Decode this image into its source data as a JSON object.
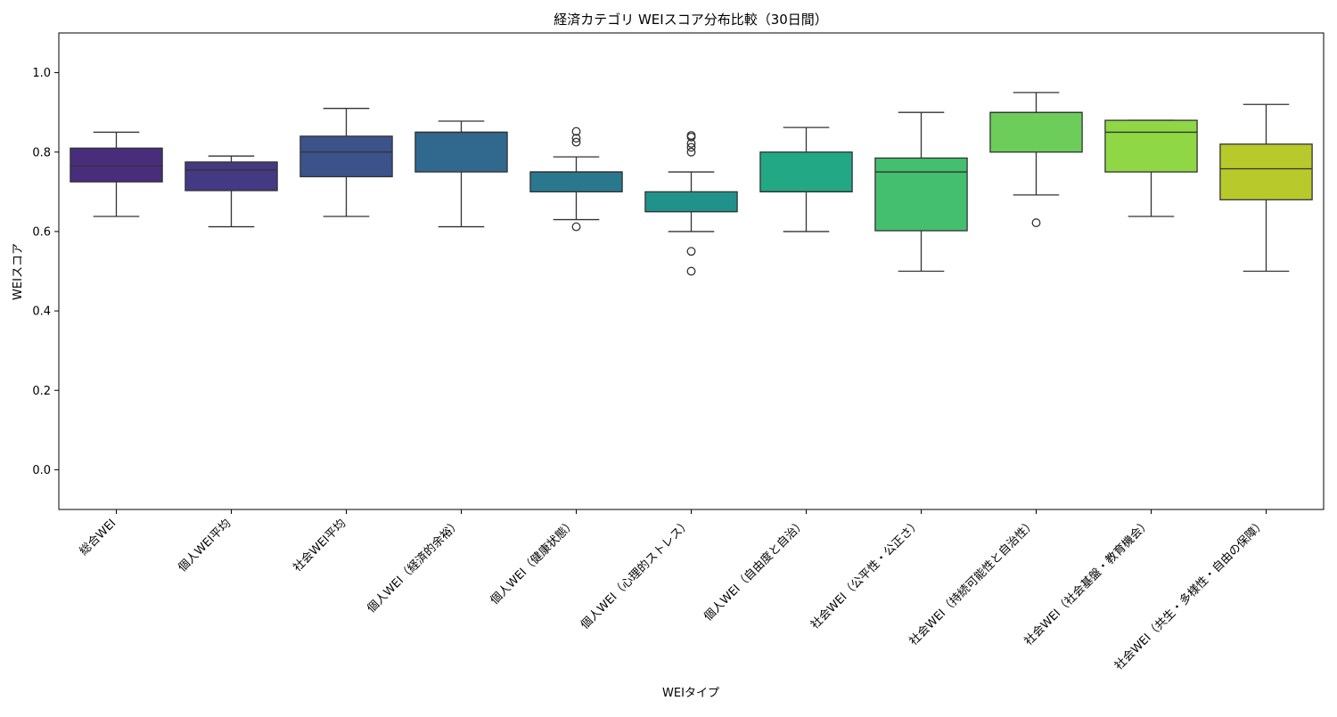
{
  "chart_data": {
    "type": "box",
    "title": "経済カテゴリ WEIスコア分布比較（30日間）",
    "xlabel": "WEIタイプ",
    "ylabel": "WEIスコア",
    "ylim": [
      -0.1,
      1.1
    ],
    "yticks": [
      0.0,
      0.2,
      0.4,
      0.6,
      0.8,
      1.0
    ],
    "ytick_labels": [
      "0.0",
      "0.2",
      "0.4",
      "0.6",
      "0.8",
      "1.0"
    ],
    "grid": false,
    "categories": [
      "総合WEI",
      "個人WEI平均",
      "社会WEI平均",
      "個人WEI（経済的余裕）",
      "個人WEI（健康状態）",
      "個人WEI（心理的ストレス）",
      "個人WEI（自由度と自治）",
      "社会WEI（公平性・公正さ）",
      "社会WEI（持続可能性と自治性）",
      "社会WEI（社会基盤・教育機会）",
      "社会WEI（共生・多様性・自由の保障）"
    ],
    "boxes": [
      {
        "whisker_low": 0.638,
        "q1": 0.725,
        "median": 0.765,
        "q3": 0.81,
        "whisker_high": 0.85,
        "outliers": [],
        "color": "#472d7b"
      },
      {
        "whisker_low": 0.612,
        "q1": 0.703,
        "median": 0.755,
        "q3": 0.775,
        "whisker_high": 0.79,
        "outliers": [],
        "color": "#443983"
      },
      {
        "whisker_low": 0.638,
        "q1": 0.738,
        "median": 0.8,
        "q3": 0.84,
        "whisker_high": 0.91,
        "outliers": [],
        "color": "#3b528b"
      },
      {
        "whisker_low": 0.612,
        "q1": 0.75,
        "median": 0.85,
        "q3": 0.85,
        "whisker_high": 0.878,
        "outliers": [],
        "color": "#31688e"
      },
      {
        "whisker_low": 0.63,
        "q1": 0.7,
        "median": 0.75,
        "q3": 0.75,
        "whisker_high": 0.788,
        "outliers": [
          0.612,
          0.825,
          0.835,
          0.852
        ],
        "color": "#2a788e"
      },
      {
        "whisker_low": 0.6,
        "q1": 0.65,
        "median": 0.65,
        "q3": 0.7,
        "whisker_high": 0.75,
        "outliers": [
          0.5,
          0.55,
          0.8,
          0.812,
          0.822,
          0.838,
          0.842
        ],
        "color": "#21918c"
      },
      {
        "whisker_low": 0.6,
        "q1": 0.7,
        "median": 0.7,
        "q3": 0.8,
        "whisker_high": 0.862,
        "outliers": [],
        "color": "#22a884"
      },
      {
        "whisker_low": 0.5,
        "q1": 0.602,
        "median": 0.75,
        "q3": 0.785,
        "whisker_high": 0.9,
        "outliers": [],
        "color": "#44bf70"
      },
      {
        "whisker_low": 0.692,
        "q1": 0.8,
        "median": 0.9,
        "q3": 0.9,
        "whisker_high": 0.95,
        "outliers": [
          0.622
        ],
        "color": "#6ccd5a"
      },
      {
        "whisker_low": 0.638,
        "q1": 0.75,
        "median": 0.85,
        "q3": 0.88,
        "whisker_high": 0.88,
        "outliers": [],
        "color": "#8fd744"
      },
      {
        "whisker_low": 0.5,
        "q1": 0.68,
        "median": 0.758,
        "q3": 0.82,
        "whisker_high": 0.92,
        "outliers": [],
        "color": "#b8c92b"
      }
    ]
  }
}
